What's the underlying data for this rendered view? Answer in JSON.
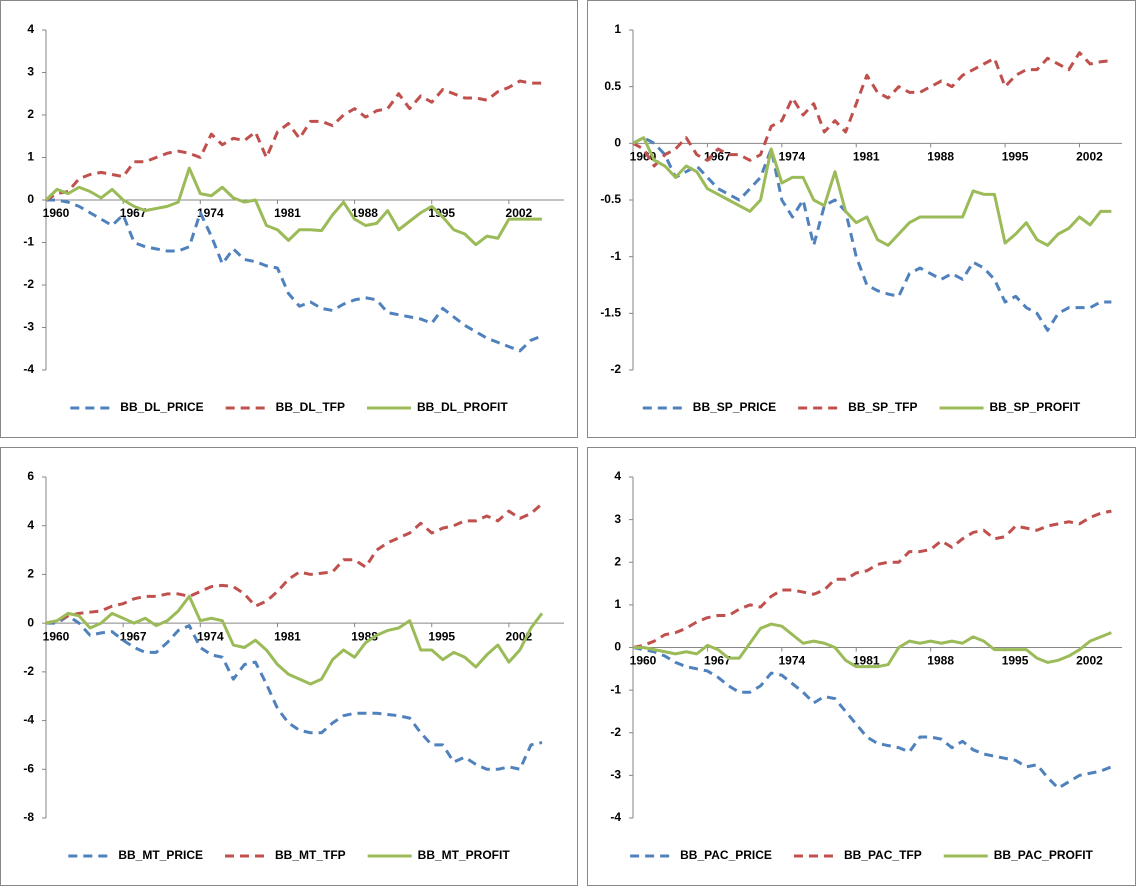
{
  "chart_data": [
    {
      "type": "line",
      "legend": "bottom",
      "x": [
        1960,
        1961,
        1962,
        1963,
        1964,
        1965,
        1966,
        1967,
        1968,
        1969,
        1970,
        1971,
        1972,
        1973,
        1974,
        1975,
        1976,
        1977,
        1978,
        1979,
        1980,
        1981,
        1982,
        1983,
        1984,
        1985,
        1986,
        1987,
        1988,
        1989,
        1990,
        1991,
        1992,
        1993,
        1994,
        1995,
        1996,
        1997,
        1998,
        1999,
        2000,
        2001,
        2002,
        2003,
        2004,
        2005
      ],
      "xlim": [
        1960,
        2007
      ],
      "xticks": [
        1960,
        1967,
        1974,
        1981,
        1988,
        1995,
        2002
      ],
      "ylim": [
        -4,
        4
      ],
      "yticks": [
        -4,
        -3,
        -2,
        -1,
        0,
        1,
        2,
        3,
        4
      ],
      "series": [
        {
          "name": "BB_DL_PRICE",
          "color": "#4f81bd",
          "style": "dashed",
          "values": [
            0,
            0,
            -0.05,
            -0.15,
            -0.3,
            -0.45,
            -0.6,
            -0.35,
            -1.0,
            -1.1,
            -1.15,
            -1.2,
            -1.2,
            -1.1,
            -0.3,
            -0.85,
            -1.5,
            -1.15,
            -1.4,
            -1.45,
            -1.55,
            -1.6,
            -2.2,
            -2.5,
            -2.4,
            -2.55,
            -2.6,
            -2.45,
            -2.35,
            -2.3,
            -2.35,
            -2.65,
            -2.7,
            -2.75,
            -2.8,
            -2.9,
            -2.55,
            -2.75,
            -2.95,
            -3.1,
            -3.25,
            -3.35,
            -3.45,
            -3.55,
            -3.3,
            -3.2
          ]
        },
        {
          "name": "BB_DL_TFP",
          "color": "#c0504d",
          "style": "dashed",
          "values": [
            0,
            0.15,
            0.2,
            0.5,
            0.6,
            0.65,
            0.6,
            0.55,
            0.9,
            0.9,
            1.0,
            1.1,
            1.15,
            1.1,
            1.0,
            1.55,
            1.3,
            1.45,
            1.4,
            1.6,
            1.0,
            1.6,
            1.8,
            1.45,
            1.85,
            1.85,
            1.75,
            2.0,
            2.15,
            1.95,
            2.1,
            2.15,
            2.5,
            2.15,
            2.45,
            2.3,
            2.6,
            2.5,
            2.4,
            2.4,
            2.35,
            2.55,
            2.65,
            2.8,
            2.75,
            2.75
          ]
        },
        {
          "name": "BB_DL_PROFIT",
          "color": "#9bbb59",
          "style": "solid",
          "values": [
            0,
            0.25,
            0.15,
            0.3,
            0.2,
            0.05,
            0.25,
            0,
            -0.15,
            -0.25,
            -0.2,
            -0.15,
            -0.05,
            0.75,
            0.15,
            0.1,
            0.3,
            0.05,
            -0.05,
            0,
            -0.6,
            -0.7,
            -0.95,
            -0.7,
            -0.7,
            -0.72,
            -0.35,
            -0.05,
            -0.45,
            -0.6,
            -0.55,
            -0.25,
            -0.7,
            -0.5,
            -0.3,
            -0.15,
            -0.4,
            -0.7,
            -0.8,
            -1.05,
            -0.85,
            -0.9,
            -0.45,
            -0.45,
            -0.45,
            -0.45
          ]
        }
      ]
    },
    {
      "type": "line",
      "legend": "bottom",
      "x": [
        1960,
        1961,
        1962,
        1963,
        1964,
        1965,
        1966,
        1967,
        1968,
        1969,
        1970,
        1971,
        1972,
        1973,
        1974,
        1975,
        1976,
        1977,
        1978,
        1979,
        1980,
        1981,
        1982,
        1983,
        1984,
        1985,
        1986,
        1987,
        1988,
        1989,
        1990,
        1991,
        1992,
        1993,
        1994,
        1995,
        1996,
        1997,
        1998,
        1999,
        2000,
        2001,
        2002,
        2003,
        2004,
        2005
      ],
      "xlim": [
        1960,
        2006
      ],
      "xticks": [
        1960,
        1967,
        1974,
        1981,
        1988,
        1995,
        2002
      ],
      "ylim": [
        -2,
        1
      ],
      "yticks": [
        -2,
        -1.5,
        -1,
        -0.5,
        0,
        0.5,
        1
      ],
      "series": [
        {
          "name": "BB_SP_PRICE",
          "color": "#4f81bd",
          "style": "dashed",
          "values": [
            0,
            0.05,
            0,
            -0.1,
            -0.3,
            -0.25,
            -0.2,
            -0.3,
            -0.4,
            -0.45,
            -0.5,
            -0.4,
            -0.3,
            -0.05,
            -0.5,
            -0.65,
            -0.5,
            -0.9,
            -0.55,
            -0.5,
            -0.6,
            -1.0,
            -1.25,
            -1.3,
            -1.33,
            -1.35,
            -1.15,
            -1.1,
            -1.15,
            -1.2,
            -1.15,
            -1.2,
            -1.05,
            -1.1,
            -1.2,
            -1.4,
            -1.35,
            -1.45,
            -1.5,
            -1.65,
            -1.5,
            -1.45,
            -1.45,
            -1.45,
            -1.4,
            -1.4
          ]
        },
        {
          "name": "BB_SP_TFP",
          "color": "#c0504d",
          "style": "dashed",
          "values": [
            0,
            -0.05,
            -0.2,
            -0.1,
            -0.05,
            0.05,
            -0.1,
            -0.15,
            -0.05,
            -0.1,
            -0.1,
            -0.15,
            -0.1,
            0.15,
            0.2,
            0.4,
            0.25,
            0.35,
            0.1,
            0.2,
            0.1,
            0.35,
            0.6,
            0.45,
            0.4,
            0.5,
            0.45,
            0.45,
            0.5,
            0.55,
            0.5,
            0.6,
            0.65,
            0.7,
            0.75,
            0.5,
            0.6,
            0.65,
            0.65,
            0.75,
            0.7,
            0.65,
            0.8,
            0.7,
            0.72,
            0.73
          ]
        },
        {
          "name": "BB_SP_PROFIT",
          "color": "#9bbb59",
          "style": "solid",
          "values": [
            0,
            0.05,
            -0.15,
            -0.2,
            -0.3,
            -0.2,
            -0.25,
            -0.4,
            -0.45,
            -0.5,
            -0.55,
            -0.6,
            -0.5,
            -0.05,
            -0.35,
            -0.3,
            -0.3,
            -0.5,
            -0.55,
            -0.25,
            -0.6,
            -0.7,
            -0.65,
            -0.85,
            -0.9,
            -0.8,
            -0.7,
            -0.65,
            -0.65,
            -0.65,
            -0.65,
            -0.65,
            -0.42,
            -0.45,
            -0.45,
            -0.88,
            -0.8,
            -0.7,
            -0.85,
            -0.9,
            -0.8,
            -0.75,
            -0.65,
            -0.72,
            -0.6,
            -0.6
          ]
        }
      ]
    },
    {
      "type": "line",
      "legend": "bottom",
      "x": [
        1960,
        1961,
        1962,
        1963,
        1964,
        1965,
        1966,
        1967,
        1968,
        1969,
        1970,
        1971,
        1972,
        1973,
        1974,
        1975,
        1976,
        1977,
        1978,
        1979,
        1980,
        1981,
        1982,
        1983,
        1984,
        1985,
        1986,
        1987,
        1988,
        1989,
        1990,
        1991,
        1992,
        1993,
        1994,
        1995,
        1996,
        1997,
        1998,
        1999,
        2000,
        2001,
        2002,
        2003,
        2004,
        2005
      ],
      "xlim": [
        1960,
        2007
      ],
      "xticks": [
        1960,
        1967,
        1974,
        1981,
        1988,
        1995,
        2002
      ],
      "ylim": [
        -8,
        6
      ],
      "yticks": [
        -8,
        -6,
        -4,
        -2,
        0,
        2,
        4,
        6
      ],
      "series": [
        {
          "name": "BB_MT_PRICE",
          "color": "#4f81bd",
          "style": "dashed",
          "values": [
            0,
            0,
            0.3,
            0,
            -0.5,
            -0.4,
            -0.35,
            -0.7,
            -1.0,
            -1.2,
            -1.2,
            -0.8,
            -0.3,
            -0.1,
            -1.0,
            -1.3,
            -1.4,
            -2.3,
            -1.7,
            -1.6,
            -2.5,
            -3.5,
            -4.1,
            -4.4,
            -4.5,
            -4.5,
            -4.1,
            -3.8,
            -3.7,
            -3.7,
            -3.7,
            -3.75,
            -3.8,
            -3.9,
            -4.5,
            -5.0,
            -5.0,
            -5.7,
            -5.5,
            -5.8,
            -6.0,
            -6.0,
            -5.9,
            -6.0,
            -5.0,
            -4.9
          ]
        },
        {
          "name": "BB_MT_TFP",
          "color": "#c0504d",
          "style": "dashed",
          "values": [
            0,
            0.1,
            0.3,
            0.4,
            0.45,
            0.5,
            0.7,
            0.8,
            1.0,
            1.1,
            1.1,
            1.2,
            1.2,
            1.1,
            1.3,
            1.5,
            1.55,
            1.5,
            1.2,
            0.7,
            0.9,
            1.3,
            1.8,
            2.1,
            2.0,
            2.05,
            2.1,
            2.6,
            2.6,
            2.3,
            3.0,
            3.3,
            3.5,
            3.7,
            4.1,
            3.7,
            3.9,
            4.0,
            4.2,
            4.2,
            4.4,
            4.2,
            4.6,
            4.3,
            4.5,
            4.9
          ]
        },
        {
          "name": "BB_MT_PROFIT",
          "color": "#9bbb59",
          "style": "solid",
          "values": [
            0,
            0.1,
            0.4,
            0.3,
            -0.2,
            0,
            0.4,
            0.2,
            0,
            0.2,
            -0.1,
            0.1,
            0.5,
            1.1,
            0.1,
            0.2,
            0.1,
            -0.9,
            -1.0,
            -0.7,
            -1.1,
            -1.7,
            -2.1,
            -2.3,
            -2.5,
            -2.3,
            -1.5,
            -1.1,
            -1.4,
            -0.8,
            -0.5,
            -0.3,
            -0.2,
            0.1,
            -1.1,
            -1.1,
            -1.5,
            -1.2,
            -1.4,
            -1.8,
            -1.3,
            -0.9,
            -1.6,
            -1.1,
            -0.2,
            0.4
          ]
        }
      ]
    },
    {
      "type": "line",
      "legend": "bottom",
      "x": [
        1960,
        1961,
        1962,
        1963,
        1964,
        1965,
        1966,
        1967,
        1968,
        1969,
        1970,
        1971,
        1972,
        1973,
        1974,
        1975,
        1976,
        1977,
        1978,
        1979,
        1980,
        1981,
        1982,
        1983,
        1984,
        1985,
        1986,
        1987,
        1988,
        1989,
        1990,
        1991,
        1992,
        1993,
        1994,
        1995,
        1996,
        1997,
        1998,
        1999,
        2000,
        2001,
        2002,
        2003,
        2004,
        2005
      ],
      "xlim": [
        1960,
        2006
      ],
      "xticks": [
        1960,
        1967,
        1974,
        1981,
        1988,
        1995,
        2002
      ],
      "ylim": [
        -4,
        4
      ],
      "yticks": [
        -4,
        -3,
        -2,
        -1,
        0,
        1,
        2,
        3,
        4
      ],
      "series": [
        {
          "name": "BB_PAC_PRICE",
          "color": "#4f81bd",
          "style": "dashed",
          "values": [
            0,
            -0.05,
            -0.1,
            -0.2,
            -0.35,
            -0.45,
            -0.5,
            -0.55,
            -0.7,
            -0.9,
            -1.05,
            -1.05,
            -0.9,
            -0.6,
            -0.65,
            -0.85,
            -1.05,
            -1.3,
            -1.15,
            -1.2,
            -1.5,
            -1.8,
            -2.1,
            -2.25,
            -2.3,
            -2.35,
            -2.45,
            -2.1,
            -2.1,
            -2.15,
            -2.35,
            -2.2,
            -2.4,
            -2.5,
            -2.55,
            -2.6,
            -2.65,
            -2.8,
            -2.75,
            -3.05,
            -3.3,
            -3.15,
            -3.0,
            -2.95,
            -2.9,
            -2.8
          ]
        },
        {
          "name": "BB_PAC_TFP",
          "color": "#c0504d",
          "style": "dashed",
          "values": [
            0,
            0.05,
            0.15,
            0.3,
            0.35,
            0.45,
            0.6,
            0.7,
            0.75,
            0.75,
            0.9,
            1.0,
            0.95,
            1.2,
            1.35,
            1.35,
            1.3,
            1.25,
            1.35,
            1.6,
            1.6,
            1.75,
            1.8,
            1.95,
            2.0,
            2.0,
            2.25,
            2.25,
            2.3,
            2.5,
            2.35,
            2.55,
            2.7,
            2.75,
            2.55,
            2.6,
            2.85,
            2.8,
            2.75,
            2.85,
            2.9,
            2.95,
            2.9,
            3.05,
            3.15,
            3.2
          ]
        },
        {
          "name": "BB_PAC_PROFIT",
          "color": "#9bbb59",
          "style": "solid",
          "values": [
            0,
            0,
            -0.05,
            -0.1,
            -0.15,
            -0.1,
            -0.15,
            0.05,
            -0.05,
            -0.25,
            -0.25,
            0.1,
            0.45,
            0.55,
            0.5,
            0.3,
            0.1,
            0.15,
            0.1,
            0.0,
            -0.3,
            -0.45,
            -0.45,
            -0.45,
            -0.4,
            0.0,
            0.15,
            0.1,
            0.15,
            0.1,
            0.15,
            0.1,
            0.25,
            0.15,
            -0.05,
            -0.05,
            -0.05,
            -0.05,
            -0.25,
            -0.35,
            -0.3,
            -0.2,
            -0.05,
            0.15,
            0.25,
            0.35
          ]
        }
      ]
    }
  ]
}
